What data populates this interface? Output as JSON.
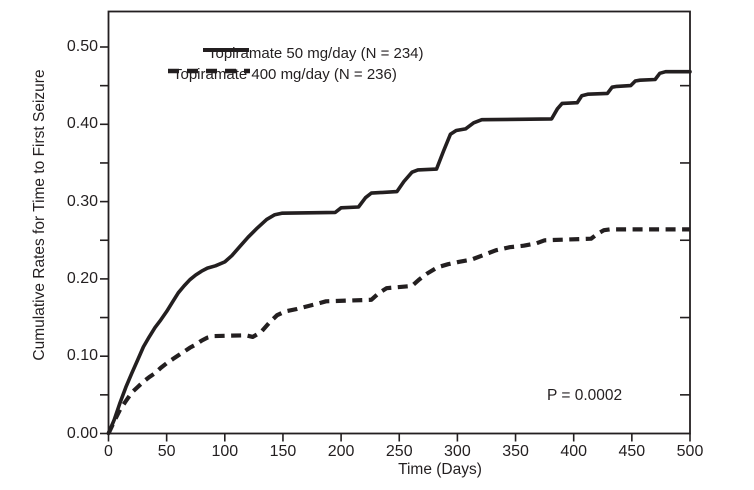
{
  "figure": {
    "background_color": "#ffffff",
    "ink_color": "#231f20"
  },
  "annotation": {
    "p_value": "P = 0.0002"
  },
  "chart_data": {
    "type": "line",
    "title": "",
    "xlabel": "Time (Days)",
    "ylabel": "Cumulative Rates for Time to First Seizure",
    "xlim": [
      0,
      500
    ],
    "ylim": [
      0,
      0.546
    ],
    "grid": false,
    "legend_position": "upper-left-inside",
    "x_ticks": [
      0,
      50,
      100,
      150,
      200,
      250,
      300,
      350,
      400,
      450,
      500
    ],
    "y_ticks": [
      {
        "v": 0.0,
        "label": "0.00"
      },
      {
        "v": 0.1,
        "label": "0.10"
      },
      {
        "v": 0.2,
        "label": "0.20"
      },
      {
        "v": 0.3,
        "label": "0.30"
      },
      {
        "v": 0.4,
        "label": "0.40"
      },
      {
        "v": 0.5,
        "label": "0.50"
      }
    ],
    "y_minor_ticks": [
      0.05,
      0.15,
      0.25,
      0.35,
      0.45
    ],
    "right_axis_ticks": [
      0.05,
      0.15,
      0.25,
      0.35,
      0.45
    ],
    "annotations": [
      {
        "text": "P = 0.0002",
        "x_day": 390,
        "y_value": 0.055
      }
    ],
    "series": [
      {
        "name": "Topiramate 50 mg/day (N = 234)",
        "style": "solid",
        "points": [
          [
            0,
            0
          ],
          [
            5,
            0.018
          ],
          [
            10,
            0.04
          ],
          [
            15,
            0.06
          ],
          [
            20,
            0.078
          ],
          [
            25,
            0.095
          ],
          [
            30,
            0.112
          ],
          [
            35,
            0.125
          ],
          [
            40,
            0.137
          ],
          [
            45,
            0.147
          ],
          [
            50,
            0.158
          ],
          [
            55,
            0.17
          ],
          [
            60,
            0.182
          ],
          [
            65,
            0.191
          ],
          [
            70,
            0.199
          ],
          [
            75,
            0.205
          ],
          [
            80,
            0.21
          ],
          [
            85,
            0.214
          ],
          [
            92,
            0.217
          ],
          [
            100,
            0.222
          ],
          [
            106,
            0.23
          ],
          [
            113,
            0.242
          ],
          [
            120,
            0.254
          ],
          [
            128,
            0.266
          ],
          [
            136,
            0.277
          ],
          [
            143,
            0.283
          ],
          [
            149,
            0.285
          ],
          [
            195,
            0.286
          ],
          [
            200,
            0.292
          ],
          [
            215,
            0.293
          ],
          [
            221,
            0.305
          ],
          [
            226,
            0.311
          ],
          [
            248,
            0.313
          ],
          [
            254,
            0.326
          ],
          [
            261,
            0.338
          ],
          [
            266,
            0.341
          ],
          [
            282,
            0.342
          ],
          [
            288,
            0.365
          ],
          [
            294,
            0.387
          ],
          [
            299,
            0.392
          ],
          [
            307,
            0.394
          ],
          [
            314,
            0.402
          ],
          [
            321,
            0.406
          ],
          [
            381,
            0.407
          ],
          [
            386,
            0.42
          ],
          [
            390,
            0.427
          ],
          [
            403,
            0.428
          ],
          [
            407,
            0.437
          ],
          [
            412,
            0.439
          ],
          [
            429,
            0.44
          ],
          [
            433,
            0.448
          ],
          [
            437,
            0.449
          ],
          [
            449,
            0.45
          ],
          [
            453,
            0.456
          ],
          [
            457,
            0.457
          ],
          [
            470,
            0.458
          ],
          [
            474,
            0.466
          ],
          [
            479,
            0.468
          ],
          [
            500,
            0.468
          ]
        ]
      },
      {
        "name": "Topiramate 400 mg/day (N = 236)",
        "style": "dashed",
        "points": [
          [
            0,
            0
          ],
          [
            5,
            0.016
          ],
          [
            10,
            0.031
          ],
          [
            15,
            0.042
          ],
          [
            20,
            0.053
          ],
          [
            25,
            0.06
          ],
          [
            30,
            0.067
          ],
          [
            35,
            0.073
          ],
          [
            40,
            0.078
          ],
          [
            45,
            0.085
          ],
          [
            50,
            0.091
          ],
          [
            55,
            0.096
          ],
          [
            60,
            0.101
          ],
          [
            65,
            0.106
          ],
          [
            70,
            0.111
          ],
          [
            75,
            0.115
          ],
          [
            80,
            0.12
          ],
          [
            85,
            0.124
          ],
          [
            90,
            0.126
          ],
          [
            118,
            0.127
          ],
          [
            124,
            0.125
          ],
          [
            131,
            0.131
          ],
          [
            138,
            0.143
          ],
          [
            145,
            0.153
          ],
          [
            152,
            0.158
          ],
          [
            162,
            0.161
          ],
          [
            172,
            0.165
          ],
          [
            180,
            0.168
          ],
          [
            187,
            0.171
          ],
          [
            226,
            0.173
          ],
          [
            232,
            0.181
          ],
          [
            239,
            0.188
          ],
          [
            261,
            0.191
          ],
          [
            267,
            0.199
          ],
          [
            274,
            0.207
          ],
          [
            283,
            0.215
          ],
          [
            292,
            0.219
          ],
          [
            301,
            0.222
          ],
          [
            312,
            0.225
          ],
          [
            321,
            0.23
          ],
          [
            333,
            0.237
          ],
          [
            345,
            0.241
          ],
          [
            357,
            0.243
          ],
          [
            368,
            0.246
          ],
          [
            375,
            0.25
          ],
          [
            415,
            0.252
          ],
          [
            420,
            0.258
          ],
          [
            426,
            0.263
          ],
          [
            431,
            0.264
          ],
          [
            500,
            0.264
          ]
        ]
      }
    ]
  }
}
